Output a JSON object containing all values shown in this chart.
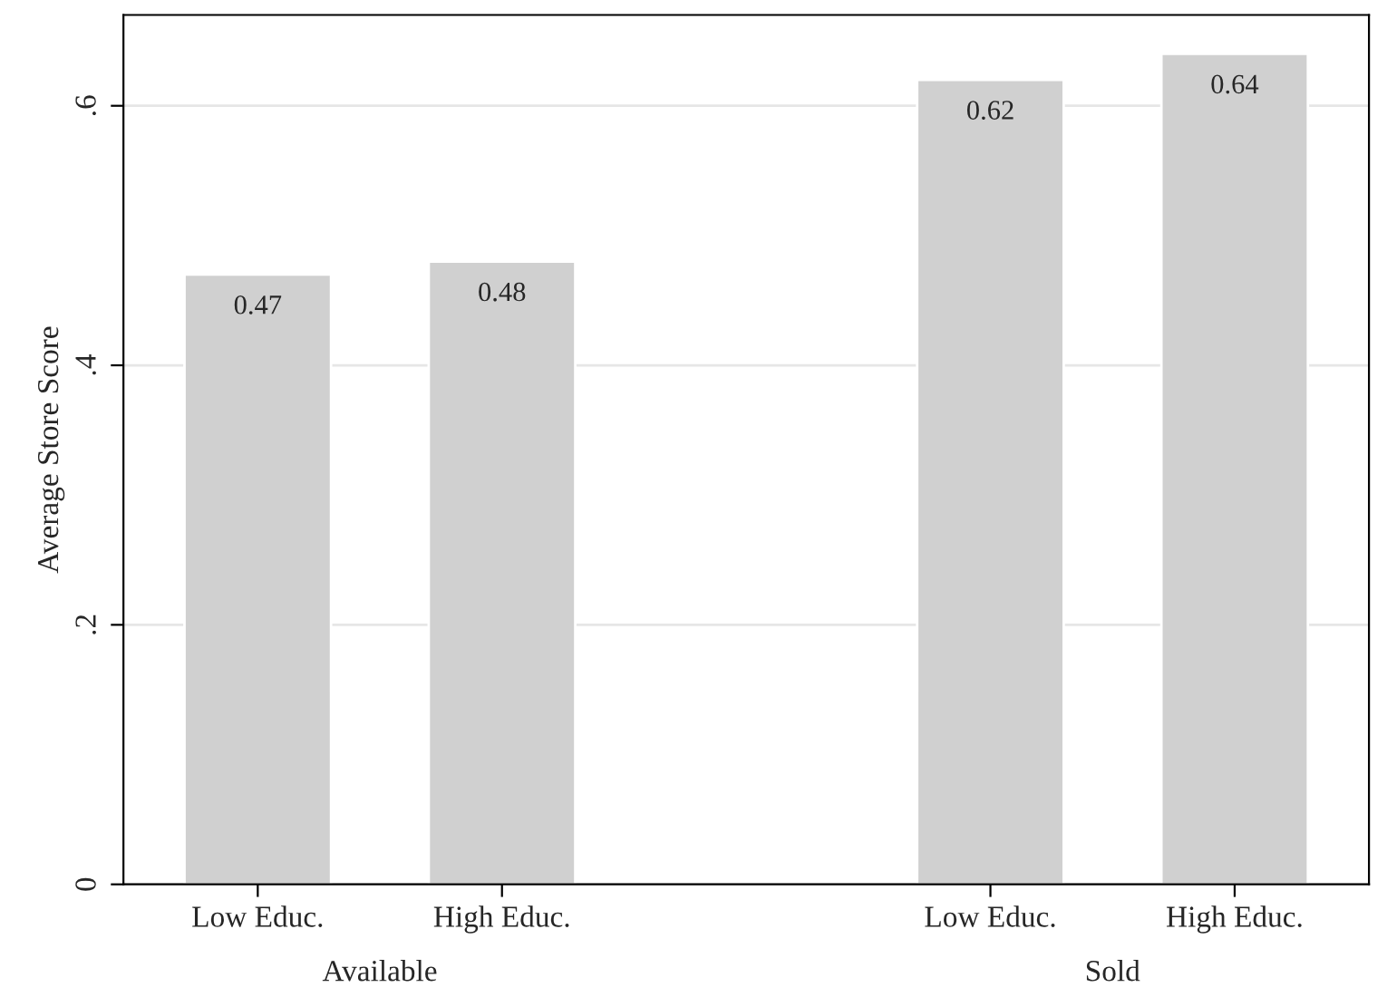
{
  "chart_data": {
    "type": "bar",
    "ylabel": "Average Store Score",
    "categories": [
      "Low Educ.",
      "High Educ.",
      null,
      "Low Educ.",
      "High Educ."
    ],
    "values": [
      0.47,
      0.48,
      null,
      0.62,
      0.64
    ],
    "color": "#d0d0d0",
    "ylim": [
      0,
      0.67
    ],
    "yticks": [
      0,
      {
        "value": 0.2,
        "label": ".2"
      },
      {
        "value": 0.4,
        "label": ".4"
      },
      {
        "value": 0.6,
        "label": ".6"
      }
    ],
    "grid": "y",
    "data_labels": true,
    "annotations": [
      "Available",
      "Sold"
    ]
  }
}
